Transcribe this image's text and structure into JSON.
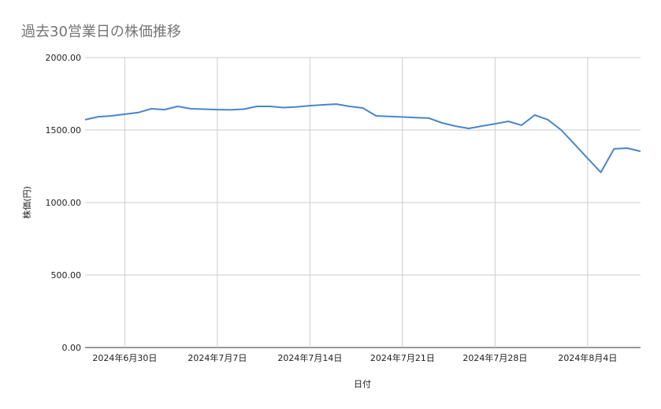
{
  "chart_data": {
    "type": "line",
    "title": "過去30営業日の株価推移",
    "xlabel": "日付",
    "ylabel": "株価(円)",
    "ylim": [
      0,
      2000
    ],
    "yticks": [
      "0.00",
      "500.00",
      "1000.00",
      "1500.00",
      "2000.00"
    ],
    "ytick_values": [
      0,
      500,
      1000,
      1500,
      2000
    ],
    "xlim": [
      "2024-06-27",
      "2024-08-08"
    ],
    "xticks": [
      "2024年6月30日",
      "2024年7月7日",
      "2024年7月14日",
      "2024年7月21日",
      "2024年7月28日",
      "2024年8月4日"
    ],
    "xtick_dates": [
      "2024-06-30",
      "2024-07-07",
      "2024-07-14",
      "2024-07-21",
      "2024-07-28",
      "2024-08-04"
    ],
    "grid": true,
    "line_color": "#4a86c8",
    "x": [
      "2024-06-27",
      "2024-06-28",
      "2024-06-29",
      "2024-06-30",
      "2024-07-01",
      "2024-07-02",
      "2024-07-03",
      "2024-07-04",
      "2024-07-05",
      "2024-07-06",
      "2024-07-07",
      "2024-07-08",
      "2024-07-09",
      "2024-07-10",
      "2024-07-11",
      "2024-07-12",
      "2024-07-13",
      "2024-07-14",
      "2024-07-15",
      "2024-07-16",
      "2024-07-17",
      "2024-07-18",
      "2024-07-19",
      "2024-07-20",
      "2024-07-21",
      "2024-07-22",
      "2024-07-23",
      "2024-07-24",
      "2024-07-25",
      "2024-07-26",
      "2024-07-27",
      "2024-07-28",
      "2024-07-29",
      "2024-07-30",
      "2024-07-31",
      "2024-08-01",
      "2024-08-02",
      "2024-08-03",
      "2024-08-04",
      "2024-08-05",
      "2024-08-06",
      "2024-08-07",
      "2024-08-08"
    ],
    "values": [
      1571,
      1592,
      1598,
      1609,
      1620,
      1647,
      1641,
      1663,
      1647,
      1644,
      1641,
      1639,
      1644,
      1663,
      1663,
      1655,
      1660,
      1668,
      1674,
      1679,
      1663,
      1652,
      1598,
      1594,
      1590,
      1586,
      1582,
      1549,
      1527,
      1511,
      1527,
      1543,
      1560,
      1533,
      1603,
      1571,
      1500,
      1403,
      1305,
      1208,
      1370,
      1375,
      1353
    ]
  }
}
